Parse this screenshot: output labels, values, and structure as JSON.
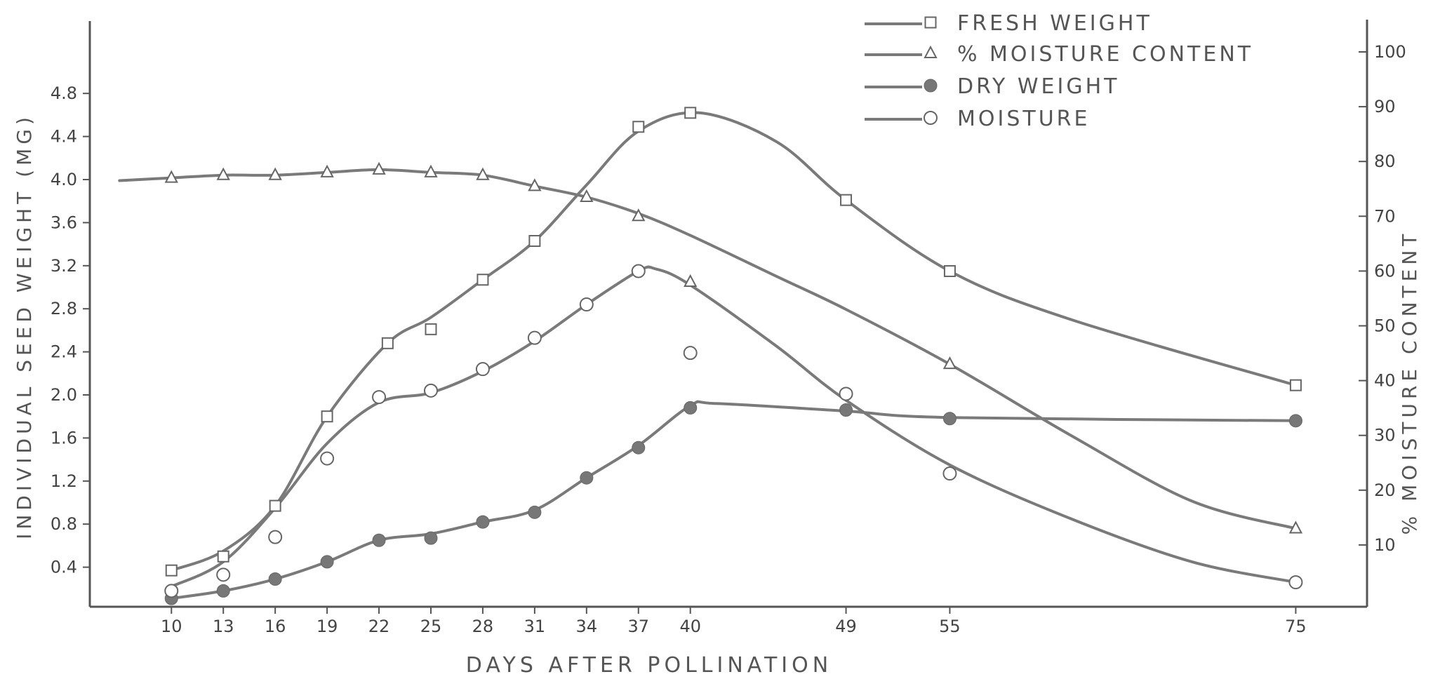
{
  "chart_data": {
    "type": "line",
    "xlabel": "DAYS AFTER POLLINATION",
    "ylabel": "INDIVIDUAL SEED WEIGHT (MG)",
    "y2label": "% MOISTURE CONTENT",
    "x_ticks": [
      "10",
      "13",
      "16",
      "19",
      "22",
      "25",
      "28",
      "31",
      "34",
      "37",
      "40",
      "49",
      "55",
      "75"
    ],
    "y_ticks": [
      "0.4",
      "0.8",
      "1.2",
      "1.6",
      "2.0",
      "2.4",
      "2.8",
      "3.2",
      "3.6",
      "4.0",
      "4.4",
      "4.8"
    ],
    "y2_ticks": [
      "10",
      "20",
      "30",
      "40",
      "50",
      "60",
      "70",
      "80",
      "90",
      "100"
    ],
    "xlim": [
      6.5,
      79
    ],
    "ylim": [
      0,
      5.7
    ],
    "y2lim": [
      0,
      110
    ],
    "legend_position": "top-right",
    "series": [
      {
        "name": "FRESH WEIGHT",
        "marker": "square",
        "axis": "left",
        "x": [
          10,
          13,
          16,
          19,
          22.5,
          25,
          28,
          31,
          37,
          40,
          49,
          55,
          75
        ],
        "y": [
          0.37,
          0.5,
          0.97,
          1.8,
          2.48,
          2.61,
          3.07,
          3.43,
          4.49,
          4.62,
          3.81,
          3.15,
          2.09
        ]
      },
      {
        "name": "% MOISTURE CONTENT",
        "marker": "triangle",
        "axis": "right",
        "x": [
          10,
          13,
          16,
          19,
          22,
          25,
          28,
          31,
          34,
          37,
          40,
          55,
          75
        ],
        "y": [
          77,
          77.5,
          77.5,
          78,
          78.5,
          78,
          77.5,
          75.5,
          73.5,
          70,
          58,
          43,
          13
        ]
      },
      {
        "name": "DRY WEIGHT",
        "marker": "filled-circle",
        "axis": "left",
        "x": [
          10,
          13,
          16,
          19,
          22,
          25,
          28,
          31,
          34,
          37,
          40,
          49,
          55,
          75
        ],
        "y": [
          0.11,
          0.18,
          0.29,
          0.45,
          0.65,
          0.67,
          0.82,
          0.91,
          1.23,
          1.51,
          1.88,
          1.86,
          1.78,
          1.76
        ]
      },
      {
        "name": "MOISTURE",
        "marker": "open-circle",
        "axis": "left",
        "x": [
          10,
          13,
          16,
          19,
          22,
          25,
          28,
          31,
          34,
          37,
          40,
          49,
          55,
          75
        ],
        "y": [
          0.18,
          0.33,
          0.68,
          1.41,
          1.98,
          2.04,
          2.24,
          2.53,
          2.84,
          3.15,
          2.39,
          2.01,
          1.27,
          0.26
        ]
      }
    ],
    "curves": [
      {
        "series": "FRESH WEIGHT",
        "axis": "left",
        "x": [
          10,
          13,
          16,
          19,
          22.5,
          25,
          28,
          31,
          34,
          37,
          40.5,
          45,
          49,
          55,
          62,
          75
        ],
        "y": [
          0.37,
          0.55,
          0.97,
          1.8,
          2.48,
          2.72,
          3.07,
          3.43,
          3.95,
          4.45,
          4.62,
          4.35,
          3.81,
          3.15,
          2.7,
          2.09
        ]
      },
      {
        "series": "% MOISTURE CONTENT",
        "axis": "right",
        "x": [
          7,
          10,
          13,
          16,
          19,
          22,
          25,
          28,
          31,
          34,
          37,
          40,
          45,
          49,
          55,
          62,
          69,
          75
        ],
        "y": [
          76.5,
          77,
          77.5,
          77.5,
          78,
          78.5,
          78,
          77.5,
          75.5,
          73.5,
          70.5,
          66.5,
          59,
          53,
          43,
          30,
          18,
          13
        ]
      },
      {
        "series": "DRY WEIGHT",
        "axis": "left",
        "x": [
          10,
          13,
          16,
          19,
          22,
          25,
          28,
          31,
          34,
          37,
          40,
          41.5,
          49,
          55,
          75
        ],
        "y": [
          0.11,
          0.18,
          0.29,
          0.45,
          0.65,
          0.71,
          0.82,
          0.93,
          1.23,
          1.53,
          1.9,
          1.92,
          1.85,
          1.79,
          1.76
        ]
      },
      {
        "series": "MOISTURE",
        "axis": "left",
        "x": [
          10,
          13,
          16,
          19,
          22,
          25,
          28,
          31,
          34,
          37,
          38,
          40,
          45,
          49,
          55,
          62,
          69,
          75
        ],
        "y": [
          0.22,
          0.45,
          0.95,
          1.55,
          1.93,
          2.02,
          2.22,
          2.5,
          2.84,
          3.15,
          3.17,
          3.02,
          2.45,
          1.95,
          1.35,
          0.85,
          0.45,
          0.26
        ]
      }
    ]
  }
}
